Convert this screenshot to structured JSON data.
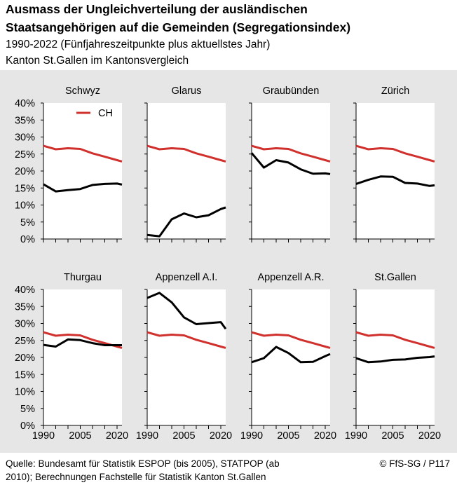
{
  "header": {
    "title_line1": "Ausmass der Ungleichverteilung der ausländischen",
    "title_line2": "Staatsangehörigen auf die Gemeinden (Segregationsindex)",
    "subtitle_line1": "1990-2022  (Fünfjahreszeitpunkte plus aktuellstes Jahr)",
    "subtitle_line2": "Kanton St.Gallen im Kantonsvergleich"
  },
  "footer": {
    "source_line1": "Quelle: Bundesamt für Statistik ESPOP (bis 2005), STATPOP (ab",
    "source_line2": "2010); Berechnungen Fachstelle für Statistik Kanton St.Gallen",
    "copyright": "© FfS-SG / P117"
  },
  "colors": {
    "ch": "#d0312d",
    "canton": "#000000",
    "panel_bg": "#ffffff",
    "area_bg": "#e6e6e6"
  },
  "chart_data": {
    "type": "line",
    "legend": {
      "label": "CH",
      "placement": "top-left of first panel"
    },
    "x": [
      1990,
      1995,
      2000,
      2005,
      2010,
      2015,
      2020,
      2022
    ],
    "x_ticks": [
      1990,
      2005,
      2020
    ],
    "x_tick_labels": [
      "1990",
      "2005",
      "2020"
    ],
    "y_ticks": [
      0,
      5,
      10,
      15,
      20,
      25,
      30,
      35,
      40
    ],
    "y_tick_labels": [
      "0%",
      "5%",
      "10%",
      "15%",
      "20%",
      "25%",
      "30%",
      "35%",
      "40%"
    ],
    "ylim": [
      0,
      40
    ],
    "xlim": [
      1990,
      2022
    ],
    "grid": false,
    "ch_series": {
      "name": "CH",
      "values": [
        27.4,
        26.4,
        26.7,
        26.5,
        25.2,
        24.2,
        23.2,
        22.8
      ]
    },
    "panels": [
      {
        "title": "Schwyz",
        "values": [
          16.1,
          14.0,
          14.4,
          14.7,
          15.9,
          16.2,
          16.3,
          16.0
        ]
      },
      {
        "title": "Glarus",
        "values": [
          1.2,
          0.8,
          5.8,
          7.5,
          6.4,
          7.0,
          8.8,
          9.3
        ]
      },
      {
        "title": "Graubünden",
        "values": [
          25.3,
          21.0,
          23.2,
          22.5,
          20.5,
          19.2,
          19.3,
          19.1
        ]
      },
      {
        "title": "Zürich",
        "values": [
          16.2,
          17.4,
          18.4,
          18.3,
          16.5,
          16.3,
          15.6,
          15.8
        ]
      },
      {
        "title": "Thurgau",
        "values": [
          23.7,
          23.2,
          25.3,
          25.1,
          24.2,
          23.6,
          23.6,
          23.6
        ]
      },
      {
        "title": "Appenzell A.I.",
        "values": [
          37.5,
          39.0,
          36.2,
          31.8,
          29.8,
          30.1,
          30.4,
          28.4
        ]
      },
      {
        "title": "Appenzell A.R.",
        "values": [
          18.6,
          19.8,
          23.1,
          21.3,
          18.6,
          18.7,
          20.4,
          21.0
        ]
      },
      {
        "title": "St.Gallen",
        "values": [
          19.8,
          18.6,
          18.8,
          19.3,
          19.4,
          19.9,
          20.1,
          20.3
        ]
      }
    ]
  }
}
